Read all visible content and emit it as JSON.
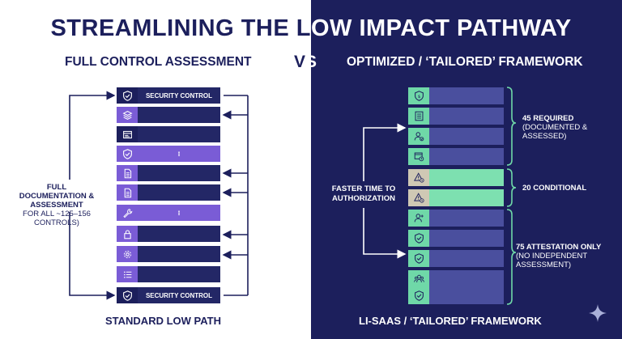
{
  "title": "STREAMLINING THE LOW IMPACT PATHWAY",
  "left_subtitle": "FULL CONTROL ASSESSMENT",
  "vs": "VS",
  "right_subtitle": "OPTIMIZED / ‘TAILORED’ FRAMEWORK",
  "left_stack": {
    "rows": [
      {
        "icon": "shield-check-icon",
        "style": "dark",
        "label": "SECURITY CONTROL"
      },
      {
        "icon": "layers-icon",
        "style": "purple-dark",
        "label": ""
      },
      {
        "icon": "browser-window-icon",
        "style": "dark",
        "label": ""
      },
      {
        "icon": "shield-check-icon",
        "style": "purple",
        "label": "⁝"
      },
      {
        "icon": "document-icon",
        "style": "purple-dark",
        "label": ""
      },
      {
        "icon": "document-icon",
        "style": "purple-dark",
        "label": ""
      },
      {
        "icon": "wrench-icon",
        "style": "purple",
        "label": "⁝"
      },
      {
        "icon": "lock-icon",
        "style": "purple-dark",
        "label": ""
      },
      {
        "icon": "gear-icon",
        "style": "purple-dark",
        "label": ""
      },
      {
        "icon": "checklist-icon",
        "style": "purple-dark",
        "label": ""
      },
      {
        "icon": "shield-check-icon",
        "style": "dark",
        "label": "SECURITY CONTROL"
      }
    ]
  },
  "left_label": {
    "bold": "FULL DOCUMENTATION & ASSESSMENT",
    "normal": "FOR ALL ~125–156 CONTROLS)"
  },
  "left_footer": "STANDARD LOW PATH",
  "right_stack": {
    "rows": [
      {
        "icon": "shield-dollar-icon",
        "style": "required"
      },
      {
        "icon": "checklist-icon",
        "style": "required"
      },
      {
        "icon": "user-check-icon",
        "style": "required"
      },
      {
        "icon": "browser-clock-icon",
        "style": "required"
      },
      {
        "icon": "warning-clock-icon",
        "style": "conditional"
      },
      {
        "icon": "warning-clock-icon",
        "style": "conditional"
      },
      {
        "icon": "user-add-icon",
        "style": "attestation"
      },
      {
        "icon": "shield-check-icon",
        "style": "attestation"
      },
      {
        "icon": "shield-check-icon",
        "style": "attestation"
      },
      {
        "icon": "users-icon",
        "style": "attestation"
      },
      {
        "icon": "shield-check-icon",
        "style": "attestation"
      }
    ]
  },
  "center_label": "FASTER TIME TO AUTHORIZATION",
  "groups": {
    "required": {
      "bold": "45 REQUIRED",
      "normal": "(DOCUMENTED & ASSESSED)"
    },
    "conditional": {
      "bold": "20 CONDITIONAL"
    },
    "attestation": {
      "bold": "75 ATTESTATION ONLY",
      "normal": "(NO INDEPENDENT ASSESSMENT)"
    }
  },
  "right_footer": "LI-SAAS / ‘TAILORED’ FRAMEWORK",
  "colors": {
    "navy": "#1c1f5c",
    "purple": "#7a5cd6",
    "green": "#6fd8a8",
    "beige": "#cfc8b4"
  }
}
